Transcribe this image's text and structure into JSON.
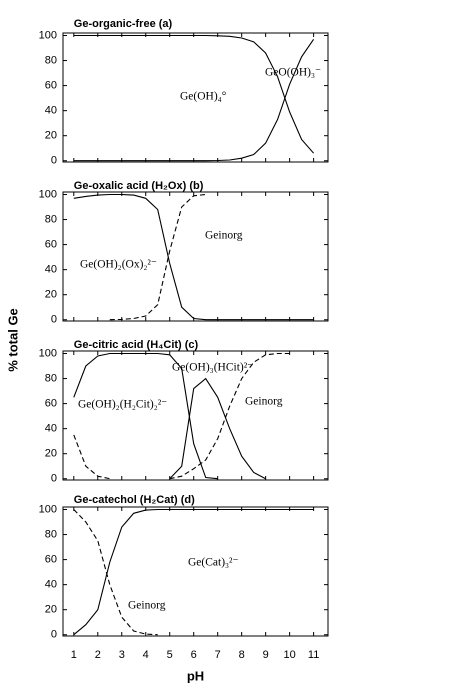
{
  "chart_data": [
    {
      "type": "line",
      "title": "Ge-organic-free (a)",
      "x": [
        1,
        1.5,
        2,
        2.5,
        3,
        3.5,
        4,
        4.5,
        5,
        5.5,
        6,
        6.5,
        7,
        7.5,
        8,
        8.5,
        9,
        9.5,
        10,
        10.5,
        11
      ],
      "series": [
        {
          "name": "Ge(OH)₄°",
          "color": "#000",
          "dash": false,
          "values": [
            100,
            100,
            100,
            100,
            100,
            100,
            100,
            100,
            100,
            100,
            100,
            100,
            99.8,
            99.4,
            98,
            95,
            86,
            67,
            39,
            17,
            6
          ]
        },
        {
          "name": "GeO(OH)₃⁻",
          "color": "#000",
          "dash": false,
          "values": [
            0,
            0,
            0,
            0,
            0,
            0,
            0,
            0,
            0,
            0,
            0,
            0,
            0.2,
            0.6,
            2,
            5,
            14,
            33,
            61,
            83,
            97
          ]
        }
      ],
      "xlim": [
        0.55,
        11.6
      ],
      "xticks": [
        1,
        2,
        3,
        4,
        5,
        6,
        7,
        8,
        9,
        10,
        11
      ],
      "ylim": [
        -1,
        102
      ],
      "yticks": [
        0,
        20,
        40,
        60,
        80,
        100
      ]
    },
    {
      "type": "line",
      "title": "Ge-oxalic acid (H₂Ox) (b)",
      "x": [
        1,
        1.5,
        2,
        2.5,
        3,
        3.5,
        4,
        4.5,
        5,
        5.5,
        6,
        6.5,
        7,
        7.5,
        8,
        8.5,
        9,
        9.5,
        10,
        10.5,
        11
      ],
      "series": [
        {
          "name": "Ge(OH)₂(Ox)₂²⁻",
          "color": "#000",
          "dash": false,
          "values": [
            97,
            98.5,
            99.5,
            100,
            100,
            99.5,
            97,
            88,
            45,
            10,
            1,
            0,
            0,
            0,
            0,
            0,
            0,
            0,
            0,
            0,
            0
          ]
        },
        {
          "name": "Geinorg",
          "color": "#000",
          "dash": true,
          "values": [
            null,
            null,
            null,
            0,
            0.3,
            1,
            3,
            12,
            55,
            90,
            99,
            100,
            null,
            null,
            null,
            null,
            null,
            null,
            null,
            null,
            null
          ]
        }
      ],
      "xlim": [
        0.55,
        11.6
      ],
      "xticks": [
        1,
        2,
        3,
        4,
        5,
        6,
        7,
        8,
        9,
        10,
        11
      ],
      "ylim": [
        -1,
        102
      ],
      "yticks": [
        0,
        20,
        40,
        60,
        80,
        100
      ]
    },
    {
      "type": "line",
      "title": "Ge-citric acid (H₄Cit) (c)",
      "ylabel": "% total Ge",
      "x": [
        1,
        1.5,
        2,
        2.5,
        3,
        3.5,
        4,
        4.5,
        5,
        5.5,
        6,
        6.5,
        7,
        7.5,
        8,
        8.5,
        9,
        9.5,
        10,
        10.5,
        11
      ],
      "series": [
        {
          "name": "Ge(OH)₂(H₂Cit)₂²⁻",
          "color": "#000",
          "dash": false,
          "values": [
            65,
            90,
            98,
            100,
            100,
            100,
            100,
            100,
            99,
            88,
            28,
            1,
            0,
            null,
            null,
            null,
            null,
            null,
            null,
            null,
            null
          ]
        },
        {
          "name": "Ge(OH)₃(HCit)²⁻",
          "color": "#000",
          "dash": false,
          "values": [
            null,
            null,
            null,
            null,
            null,
            null,
            null,
            null,
            0,
            10,
            72,
            80,
            65,
            40,
            18,
            5,
            0,
            null,
            null,
            null,
            null
          ]
        },
        {
          "name": "Geinorg",
          "color": "#000",
          "dash": true,
          "values": [
            35,
            10,
            2,
            0,
            null,
            null,
            null,
            null,
            0,
            2,
            8,
            15,
            32,
            58,
            80,
            93,
            99,
            100,
            100,
            null,
            null
          ]
        }
      ],
      "xlim": [
        0.55,
        11.6
      ],
      "xticks": [
        1,
        2,
        3,
        4,
        5,
        6,
        7,
        8,
        9,
        10,
        11
      ],
      "ylim": [
        -1,
        102
      ],
      "yticks": [
        0,
        20,
        40,
        60,
        80,
        100
      ]
    },
    {
      "type": "line",
      "title": "Ge-catechol (H₂Cat) (d)",
      "xlabel": "pH",
      "x": [
        1,
        1.5,
        2,
        2.5,
        3,
        3.5,
        4,
        4.5,
        5,
        5.5,
        6,
        6.5,
        7,
        7.5,
        8,
        8.5,
        9,
        9.5,
        10,
        10.5,
        11
      ],
      "series": [
        {
          "name": "Ge(Cat)₃²⁻",
          "color": "#000",
          "dash": false,
          "values": [
            0,
            8,
            20,
            58,
            86,
            97,
            99.5,
            100,
            100,
            100,
            100,
            100,
            100,
            100,
            100,
            100,
            100,
            100,
            100,
            100,
            100
          ]
        },
        {
          "name": "Geinorg",
          "color": "#000",
          "dash": true,
          "values": [
            100,
            90,
            75,
            40,
            14,
            3,
            0.5,
            0,
            null,
            null,
            null,
            null,
            null,
            null,
            null,
            null,
            null,
            null,
            null,
            null,
            null
          ]
        }
      ],
      "xlim": [
        0.55,
        11.6
      ],
      "xticks": [
        1,
        2,
        3,
        4,
        5,
        6,
        7,
        8,
        9,
        10,
        11
      ],
      "ylim": [
        -1,
        102
      ],
      "yticks": [
        0,
        20,
        40,
        60,
        80,
        100
      ]
    }
  ]
}
